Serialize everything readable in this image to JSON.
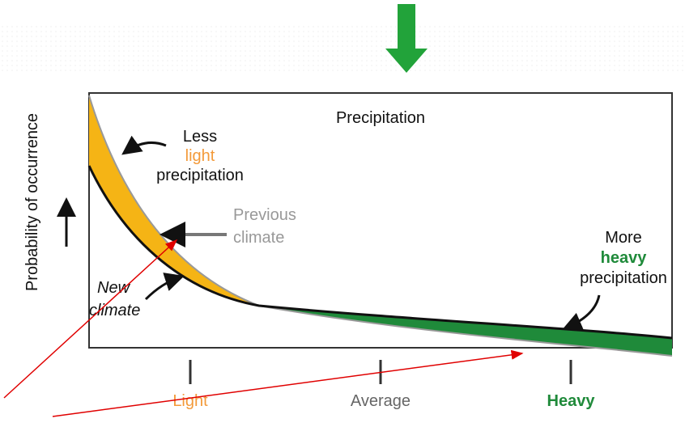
{
  "diagram": {
    "title": "Precipitation",
    "y_axis_label": "Probability of occurrence",
    "annotations": {
      "less_light": [
        "Less",
        "light",
        "precipitation"
      ],
      "previous_climate": [
        "Previous",
        "climate"
      ],
      "new_climate": [
        "New",
        "climate"
      ],
      "more_heavy": [
        "More",
        "heavy",
        "precipitation"
      ]
    },
    "x_labels": [
      "Light",
      "Average",
      "Heavy"
    ]
  }
}
